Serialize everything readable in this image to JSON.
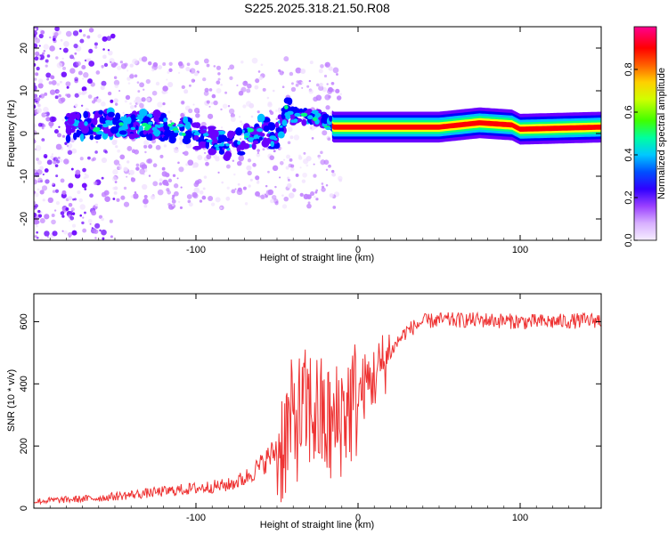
{
  "title": "S225.2025.318.21.50.R08",
  "chart_data": [
    {
      "type": "heatmap",
      "title": "S225.2025.318.21.50.R08",
      "xlabel": "Height of straight line (km)",
      "ylabel": "Frequency (Hz)",
      "xlim": [
        -200,
        150
      ],
      "ylim": [
        -25,
        25
      ],
      "xticks": [
        -100,
        0,
        100
      ],
      "yticks": [
        -20,
        -10,
        0,
        10,
        20
      ],
      "colorbar": {
        "label": "Normalized spectral amplitude",
        "range": [
          0,
          1
        ],
        "ticks": [
          0.0,
          0.2,
          0.4,
          0.6,
          0.8
        ],
        "tick_labels": [
          "0.0",
          "0.2",
          "0.4",
          "0.6",
          "0.8"
        ],
        "colormap": [
          "#f0e0ff",
          "#c080ff",
          "#6a00ff",
          "#0000ff",
          "#00c0ff",
          "#00ff80",
          "#80ff00",
          "#ffff00",
          "#ff8000",
          "#ff0000",
          "#ff00a0"
        ]
      },
      "centerline": [
        {
          "x": -195,
          "f": 2
        },
        {
          "x": -170,
          "f": 1.5
        },
        {
          "x": -150,
          "f": 2.5
        },
        {
          "x": -130,
          "f": 2
        },
        {
          "x": -110,
          "f": 1
        },
        {
          "x": -95,
          "f": -1
        },
        {
          "x": -80,
          "f": -3
        },
        {
          "x": -72,
          "f": -2
        },
        {
          "x": -60,
          "f": 1
        },
        {
          "x": -50,
          "f": -1
        },
        {
          "x": -45,
          "f": 5
        },
        {
          "x": -38,
          "f": 4
        },
        {
          "x": -30,
          "f": 4
        },
        {
          "x": -20,
          "f": 3
        },
        {
          "x": -15,
          "f": 1.5
        },
        {
          "x": 0,
          "f": 1.5
        },
        {
          "x": 50,
          "f": 1.5
        },
        {
          "x": 75,
          "f": 2.5
        },
        {
          "x": 95,
          "f": 2
        },
        {
          "x": 100,
          "f": 1
        },
        {
          "x": 150,
          "f": 1.5
        }
      ]
    },
    {
      "type": "line",
      "xlabel": "Height of straight line (km)",
      "ylabel": "SNR (10 * v/v)",
      "xlim": [
        -200,
        150
      ],
      "ylim": [
        0,
        690
      ],
      "xticks": [
        -100,
        0,
        100
      ],
      "yticks": [
        0,
        200,
        400,
        600
      ],
      "color": "#ee3333",
      "series": [
        {
          "name": "SNR",
          "x": [
            -200,
            -180,
            -160,
            -140,
            -120,
            -100,
            -80,
            -70,
            -60,
            -50,
            -45,
            -40,
            -35,
            -30,
            -25,
            -20,
            -15,
            -10,
            -5,
            0,
            5,
            10,
            15,
            20,
            25,
            30,
            40,
            50,
            60,
            80,
            100,
            120,
            150
          ],
          "y": [
            20,
            25,
            30,
            40,
            50,
            60,
            70,
            90,
            130,
            180,
            230,
            280,
            300,
            320,
            300,
            270,
            250,
            310,
            330,
            360,
            400,
            420,
            460,
            500,
            540,
            570,
            600,
            605,
            605,
            605,
            600,
            600,
            605
          ]
        }
      ]
    }
  ]
}
